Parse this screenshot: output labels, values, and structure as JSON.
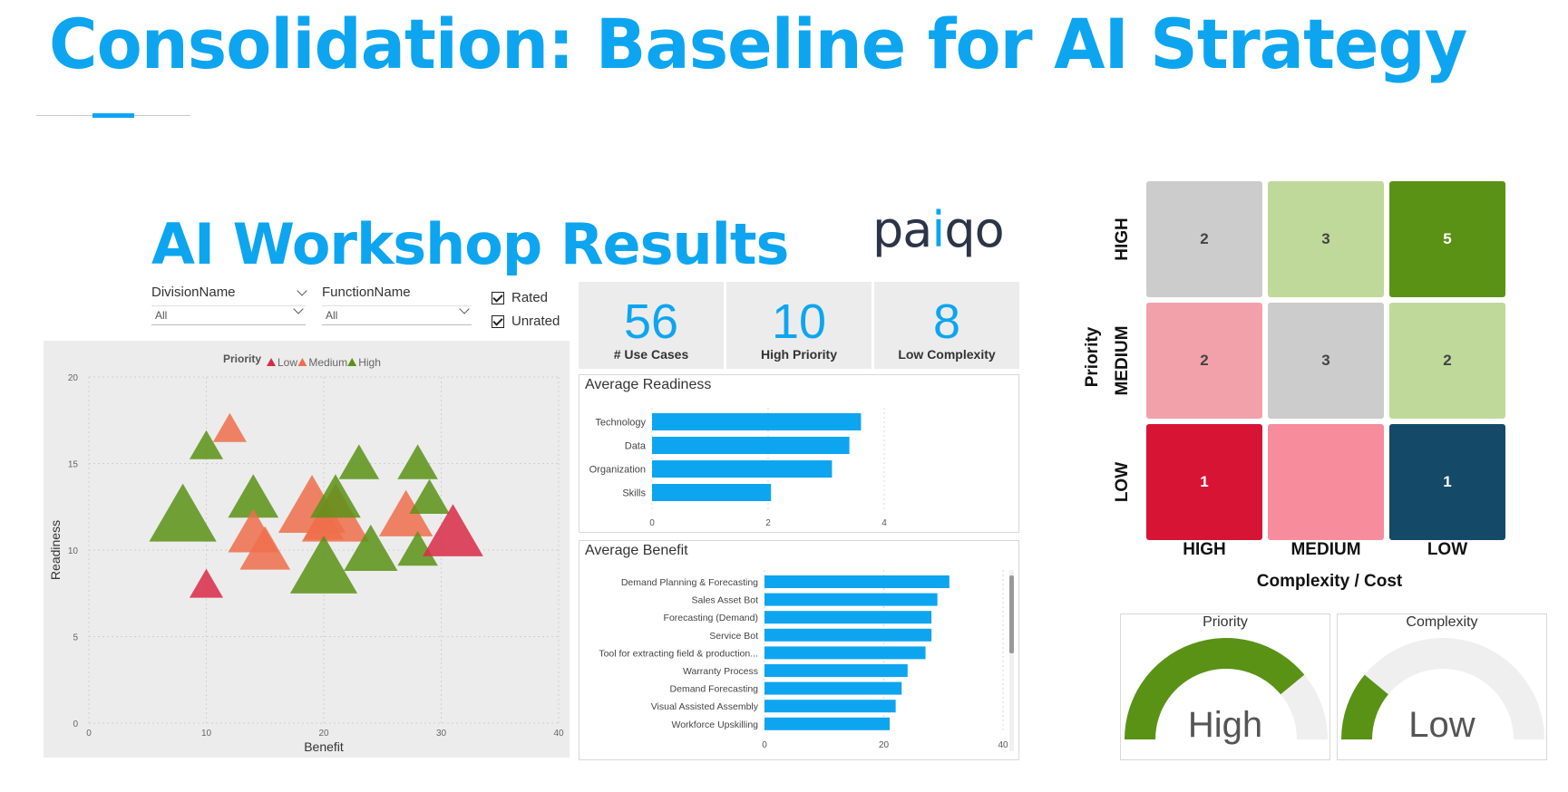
{
  "slide": {
    "title": "Consolidation: Baseline for AI Strategy"
  },
  "report": {
    "title": "AI Workshop Results",
    "logo_text": "paiqo"
  },
  "slicers": [
    {
      "label": "DivisionName",
      "value": "All"
    },
    {
      "label": "FunctionName",
      "value": "All"
    }
  ],
  "checkboxes": [
    {
      "label": "Rated",
      "checked": true
    },
    {
      "label": "Unrated",
      "checked": true
    }
  ],
  "kpis": [
    {
      "value": "56",
      "label": "# Use Cases"
    },
    {
      "value": "10",
      "label": "High Priority"
    },
    {
      "value": "8",
      "label": "Low Complexity"
    }
  ],
  "colors": {
    "accent": "#0ea5f0",
    "low": "#d92b47",
    "medium": "#ef6e4c",
    "high": "#5a9216",
    "gauge_fill": "#5a9216",
    "gauge_bg": "#efefef"
  },
  "chart_data": [
    {
      "type": "scatter",
      "legend_title": "Priority",
      "legend": [
        "Low",
        "Medium",
        "High"
      ],
      "legend_position": "top-center",
      "xlabel": "Benefit",
      "ylabel": "Readiness",
      "xlim": [
        0,
        40
      ],
      "ylim": [
        0,
        20
      ],
      "xticks": [
        "0",
        "10",
        "20",
        "30",
        "40"
      ],
      "yticks": [
        "0",
        "5",
        "10",
        "15",
        "20"
      ],
      "grid": true,
      "points": [
        {
          "x": 10,
          "y": 16,
          "priority": "High",
          "size": 1
        },
        {
          "x": 12,
          "y": 17,
          "priority": "Medium",
          "size": 1
        },
        {
          "x": 8,
          "y": 12,
          "priority": "High",
          "size": 2
        },
        {
          "x": 14,
          "y": 13,
          "priority": "High",
          "size": 1.5
        },
        {
          "x": 14,
          "y": 11,
          "priority": "Medium",
          "size": 1.5
        },
        {
          "x": 15,
          "y": 10,
          "priority": "Medium",
          "size": 1.5
        },
        {
          "x": 10,
          "y": 8,
          "priority": "Low",
          "size": 1
        },
        {
          "x": 19,
          "y": 12.5,
          "priority": "Medium",
          "size": 2
        },
        {
          "x": 20,
          "y": 11.5,
          "priority": "Medium",
          "size": 1.2
        },
        {
          "x": 21,
          "y": 12,
          "priority": "Medium",
          "size": 2
        },
        {
          "x": 21,
          "y": 13,
          "priority": "High",
          "size": 1.5
        },
        {
          "x": 20,
          "y": 9,
          "priority": "High",
          "size": 2
        },
        {
          "x": 24,
          "y": 10,
          "priority": "High",
          "size": 1.6
        },
        {
          "x": 23,
          "y": 15,
          "priority": "High",
          "size": 1.2
        },
        {
          "x": 27,
          "y": 12,
          "priority": "Medium",
          "size": 1.6
        },
        {
          "x": 28,
          "y": 15,
          "priority": "High",
          "size": 1.2
        },
        {
          "x": 29,
          "y": 13,
          "priority": "High",
          "size": 1.2
        },
        {
          "x": 28,
          "y": 10,
          "priority": "High",
          "size": 1.2
        },
        {
          "x": 31,
          "y": 11,
          "priority": "Low",
          "size": 1.8
        }
      ]
    },
    {
      "type": "bar",
      "orientation": "horizontal",
      "title": "Average Readiness",
      "categories": [
        "Technology",
        "Data",
        "Organization",
        "Skills"
      ],
      "values": [
        3.6,
        3.4,
        3.1,
        2.05
      ],
      "xlim": [
        0,
        5
      ],
      "xticks": [
        "0",
        "2",
        "4"
      ]
    },
    {
      "type": "bar",
      "orientation": "horizontal",
      "title": "Average Benefit",
      "categories": [
        "Demand Planning & Forecasting",
        "Sales Asset Bot",
        "Forecasting (Demand)",
        "Service Bot",
        "Tool for extracting field & production...",
        "Warranty Process",
        "Demand Forecasting",
        "Visual Assisted Assembly",
        "Workforce Upskilling"
      ],
      "values": [
        31,
        29,
        28,
        28,
        27,
        24,
        23,
        22,
        21
      ],
      "xlim": [
        0,
        40
      ],
      "xticks": [
        "0",
        "20",
        "40"
      ]
    },
    {
      "type": "heatmap",
      "ylabel": "Priority",
      "xlabel": "Complexity / Cost",
      "rows": [
        "HIGH",
        "MEDIUM",
        "LOW"
      ],
      "cols": [
        "HIGH",
        "MEDIUM",
        "LOW"
      ],
      "cells": [
        [
          {
            "value": "2",
            "color": "#cccccc"
          },
          {
            "value": "3",
            "color": "#bfd99a"
          },
          {
            "value": "5",
            "color": "#5a9216"
          }
        ],
        [
          {
            "value": "2",
            "color": "#f2a1ab"
          },
          {
            "value": "3",
            "color": "#cccccc"
          },
          {
            "value": "2",
            "color": "#bfd99a"
          }
        ],
        [
          {
            "value": "1",
            "color": "#d71434"
          },
          {
            "value": "",
            "color": "#f78c9d"
          },
          {
            "value": "1",
            "color": "#144a68"
          }
        ]
      ]
    }
  ],
  "gauges": [
    {
      "title": "Priority",
      "value_label": "High",
      "fraction": 0.78
    },
    {
      "title": "Complexity",
      "value_label": "Low",
      "fraction": 0.22
    }
  ]
}
